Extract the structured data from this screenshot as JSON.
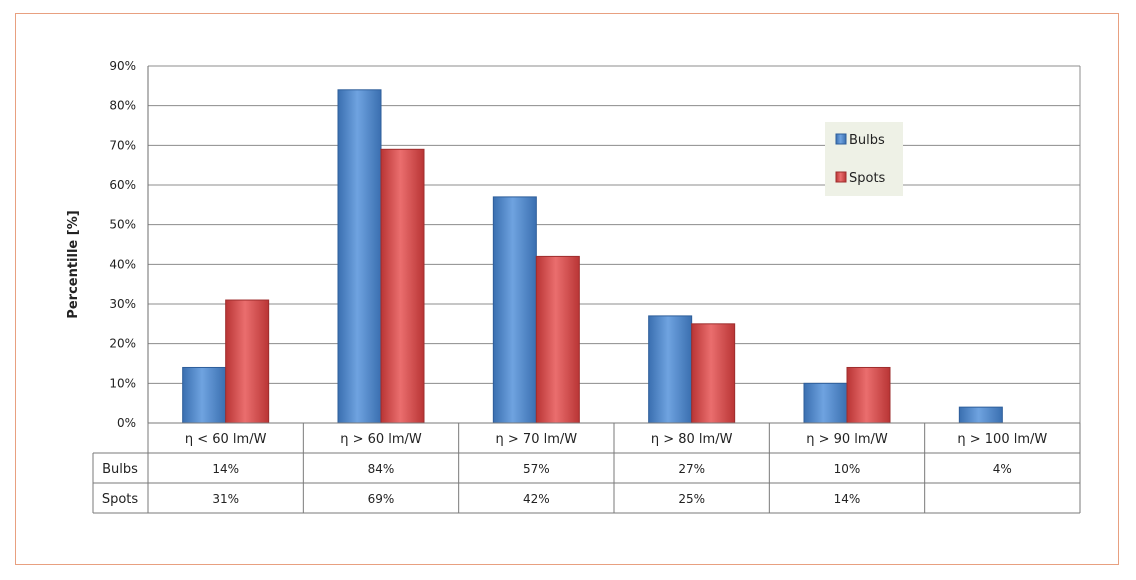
{
  "chart_data": {
    "type": "bar",
    "ylabel": "Percentille [%]",
    "ylim": [
      0,
      90
    ],
    "yticks": [
      "0%",
      "10%",
      "20%",
      "30%",
      "40%",
      "50%",
      "60%",
      "70%",
      "80%",
      "90%"
    ],
    "categories": [
      "η <  60 lm/W",
      "η  > 60 lm/W",
      "η  > 70 lm/W",
      "η  > 80 lm/W",
      "η  > 90 lm/W",
      "η  > 100 lm/W"
    ],
    "series": [
      {
        "name": "Bulbs",
        "color": "#4a86cc",
        "values": [
          14,
          84,
          57,
          27,
          10,
          4
        ],
        "labels": [
          "14%",
          "84%",
          "57%",
          "27%",
          "10%",
          "4%"
        ]
      },
      {
        "name": "Spots",
        "color": "#d94a4a",
        "values": [
          31,
          69,
          42,
          25,
          14,
          null
        ],
        "labels": [
          "31%",
          "69%",
          "42%",
          "25%",
          "14%",
          ""
        ]
      }
    ],
    "grid": true,
    "legend": "top-right",
    "data_table": true
  }
}
